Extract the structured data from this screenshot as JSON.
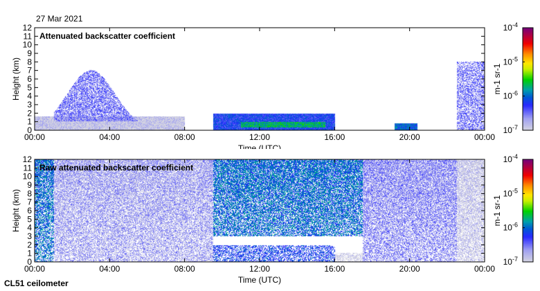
{
  "date": "27 Mar 2021",
  "instrument": "CL51 ceilometer",
  "chart_data": [
    {
      "type": "heatmap",
      "title": "Attenuated backscatter coefficient",
      "xlabel": "Time (UTC)",
      "ylabel": "Height (km)",
      "xlim_hours": [
        0,
        24
      ],
      "ylim": [
        0,
        12
      ],
      "x_tick_labels": [
        "00:00",
        "04:00",
        "08:00",
        "12:00",
        "16:00",
        "20:00",
        "00:00"
      ],
      "y_tick_labels": [
        "0",
        "1",
        "2",
        "3",
        "4",
        "5",
        "6",
        "7",
        "8",
        "9",
        "10",
        "11",
        "12"
      ],
      "colorbar": {
        "label": "m-1 sr-1",
        "scale": "log",
        "range": [
          1e-07,
          0.0001
        ],
        "tick_labels": [
          {
            "base": "10",
            "exp": "-4"
          },
          {
            "base": "10",
            "exp": "-5"
          },
          {
            "base": "10",
            "exp": "-6"
          },
          {
            "base": "10",
            "exp": "-7"
          }
        ]
      },
      "features": [
        {
          "t": [
            0,
            1.0
          ],
          "h": [
            0,
            0.6
          ],
          "log10": -6.3
        },
        {
          "t": [
            0,
            8.0
          ],
          "h": [
            0,
            1.6
          ],
          "log10": -6.9
        },
        {
          "t": [
            1.0,
            6.5
          ],
          "h": [
            1.0,
            7.0
          ],
          "log10": -6.5
        },
        {
          "t": [
            9.5,
            16.0
          ],
          "h": [
            0,
            1.9
          ],
          "log10": -6.2
        },
        {
          "t": [
            11.0,
            15.5
          ],
          "h": [
            0.3,
            0.9
          ],
          "log10": -5.7
        },
        {
          "t": [
            19.2,
            20.4
          ],
          "h": [
            0,
            0.8
          ],
          "log10": -6.0
        },
        {
          "t": [
            22.5,
            24.0
          ],
          "h": [
            0,
            8.0
          ],
          "log10": -6.5
        }
      ]
    },
    {
      "type": "heatmap",
      "title": "Raw attenuated backscatter coefficient",
      "xlabel": "Time (UTC)",
      "ylabel": "Height (km)",
      "xlim_hours": [
        0,
        24
      ],
      "ylim": [
        0,
        12
      ],
      "x_tick_labels": [
        "00:00",
        "04:00",
        "08:00",
        "12:00",
        "16:00",
        "20:00",
        "00:00"
      ],
      "y_tick_labels": [
        "0",
        "1",
        "2",
        "3",
        "4",
        "5",
        "6",
        "7",
        "8",
        "9",
        "10",
        "11",
        "12"
      ],
      "colorbar": {
        "label": "m-1 sr-1",
        "scale": "log",
        "range": [
          1e-07,
          0.0001
        ],
        "tick_labels": [
          {
            "base": "10",
            "exp": "-4"
          },
          {
            "base": "10",
            "exp": "-5"
          },
          {
            "base": "10",
            "exp": "-6"
          },
          {
            "base": "10",
            "exp": "-7"
          }
        ]
      },
      "features": [
        {
          "t": [
            0,
            1.0
          ],
          "h": [
            0,
            12
          ],
          "log10": -6.0
        },
        {
          "t": [
            1.0,
            9.5
          ],
          "h": [
            0,
            12
          ],
          "log10": -6.7
        },
        {
          "t": [
            9.5,
            17.5
          ],
          "h": [
            3,
            12
          ],
          "log10": -6.0
        },
        {
          "t": [
            9.5,
            16.0
          ],
          "h": [
            0,
            1.9
          ],
          "log10": -6.2
        },
        {
          "t": [
            16.0,
            17.5
          ],
          "h": [
            0,
            1.0
          ],
          "log10": -7.0
        },
        {
          "t": [
            17.5,
            22.5
          ],
          "h": [
            0,
            12
          ],
          "log10": -6.6
        },
        {
          "t": [
            22.5,
            24.0
          ],
          "h": [
            0,
            12
          ],
          "log10": -6.9
        }
      ]
    }
  ]
}
